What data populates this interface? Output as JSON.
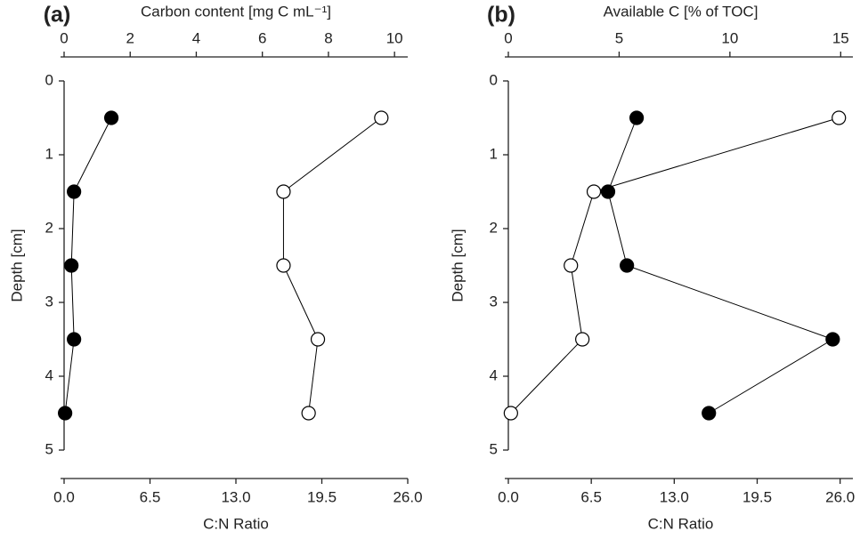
{
  "chart_data": [
    {
      "type": "scatter",
      "label": "(a)",
      "xlabel_top": "Carbon content [mg C mL⁻¹]",
      "xlabel_bottom": "C:N Ratio",
      "ylabel": "Depth [cm]",
      "xlim": [
        0,
        10.4
      ],
      "xticks": [
        0,
        2,
        4,
        6,
        8,
        10
      ],
      "x2lim": [
        0,
        26.0
      ],
      "x2ticks": [
        {
          "value": 0,
          "label": "0.0"
        },
        {
          "value": 6.5,
          "label": "6.5"
        },
        {
          "value": 13,
          "label": "13.0"
        },
        {
          "value": 19.5,
          "label": "19.5"
        },
        {
          "value": 26,
          "label": "26.0"
        }
      ],
      "ylim": [
        0,
        5
      ],
      "yticks": [
        0,
        1,
        2,
        3,
        4,
        5
      ],
      "y_inverted": true,
      "y": [
        0.5,
        1.5,
        2.5,
        3.5,
        4.5
      ],
      "series": [
        {
          "axis": "x",
          "color": "#000000",
          "marker_fill": "#000000",
          "values": [
            1.43,
            0.3,
            0.22,
            0.3,
            0.03
          ]
        },
        {
          "axis": "x2",
          "color": "#000000",
          "marker_fill": "#ffffff",
          "values": [
            24.0,
            16.6,
            16.6,
            19.2,
            18.5
          ]
        }
      ]
    },
    {
      "type": "scatter",
      "label": "(b)",
      "xlabel_top": "Available C [% of TOC]",
      "xlabel_bottom": "C:N Ratio",
      "ylabel": "Depth [cm]",
      "xlim": [
        0,
        15.55
      ],
      "xticks": [
        0,
        5,
        10,
        15
      ],
      "x2lim": [
        0,
        27.0
      ],
      "x2ticks": [
        {
          "value": 0,
          "label": "0.0"
        },
        {
          "value": 6.5,
          "label": "6.5"
        },
        {
          "value": 13,
          "label": "13.0"
        },
        {
          "value": 19.5,
          "label": "19.5"
        },
        {
          "value": 26,
          "label": "26.0"
        }
      ],
      "ylim": [
        0,
        5
      ],
      "yticks": [
        0,
        1,
        2,
        3,
        4,
        5
      ],
      "y_inverted": true,
      "y": [
        0.5,
        1.5,
        2.5,
        3.5,
        4.5
      ],
      "series": [
        {
          "axis": "x",
          "color": "#000000",
          "marker_fill": "#000000",
          "values": [
            5.79,
            4.5,
            5.35,
            14.64,
            9.05
          ]
        },
        {
          "axis": "x2",
          "color": "#000000",
          "marker_fill": "#ffffff",
          "values": [
            25.9,
            6.7,
            4.9,
            5.8,
            0.2
          ]
        }
      ]
    }
  ]
}
